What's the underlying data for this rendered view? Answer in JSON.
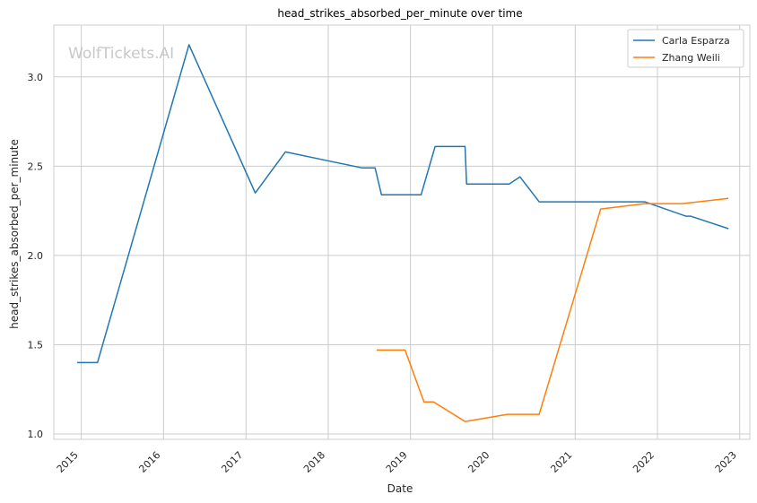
{
  "chart_data": {
    "type": "line",
    "title": "head_strikes_absorbed_per_minute over time",
    "xlabel": "Date",
    "ylabel": "head_strikes_absorbed_per_minute",
    "watermark": "WolfTickets.AI",
    "xlim": [
      "2014-09-01",
      "2023-02-15"
    ],
    "ylim": [
      0.97,
      3.29
    ],
    "x_ticks": [
      "2015",
      "2016",
      "2017",
      "2018",
      "2019",
      "2020",
      "2021",
      "2022",
      "2023"
    ],
    "y_ticks": [
      1.0,
      1.5,
      2.0,
      2.5,
      3.0
    ],
    "y_tick_labels": [
      "1.0",
      "1.5",
      "2.0",
      "2.5",
      "3.0"
    ],
    "grid": true,
    "legend_position": "top-right",
    "series": [
      {
        "name": "Carla Esparza",
        "color": "#1f77b4",
        "points": [
          [
            "2014-12-13",
            1.4
          ],
          [
            "2015-03-14",
            1.4
          ],
          [
            "2016-04-23",
            3.18
          ],
          [
            "2017-02-11",
            2.35
          ],
          [
            "2017-06-25",
            2.58
          ],
          [
            "2017-12-30",
            2.53
          ],
          [
            "2018-06-01",
            2.49
          ],
          [
            "2018-07-28",
            2.49
          ],
          [
            "2018-08-25",
            2.34
          ],
          [
            "2019-02-17",
            2.34
          ],
          [
            "2019-04-20",
            2.61
          ],
          [
            "2019-08-31",
            2.61
          ],
          [
            "2019-09-07",
            2.4
          ],
          [
            "2020-03-14",
            2.4
          ],
          [
            "2020-05-01",
            2.44
          ],
          [
            "2020-07-25",
            2.3
          ],
          [
            "2021-05-15",
            2.3
          ],
          [
            "2021-11-06",
            2.3
          ],
          [
            "2022-05-07",
            2.22
          ],
          [
            "2022-05-28",
            2.22
          ],
          [
            "2022-11-12",
            2.15
          ]
        ]
      },
      {
        "name": "Zhang Weili",
        "color": "#ff7f0e",
        "points": [
          [
            "2018-08-04",
            1.47
          ],
          [
            "2018-12-08",
            1.47
          ],
          [
            "2019-03-02",
            1.18
          ],
          [
            "2019-04-13",
            1.18
          ],
          [
            "2019-08-31",
            1.07
          ],
          [
            "2020-03-07",
            1.11
          ],
          [
            "2020-07-25",
            1.11
          ],
          [
            "2021-04-24",
            2.26
          ],
          [
            "2021-11-06",
            2.29
          ],
          [
            "2022-04-01",
            2.29
          ],
          [
            "2022-04-25",
            2.29
          ],
          [
            "2022-11-12",
            2.32
          ]
        ]
      }
    ]
  }
}
